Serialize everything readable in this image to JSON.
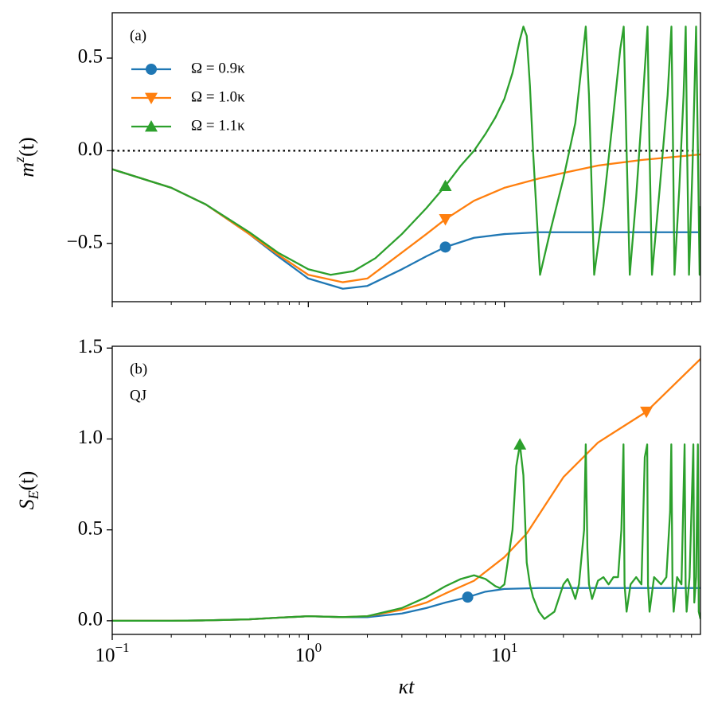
{
  "chart_data": [
    {
      "type": "line",
      "panel_label": "(a)",
      "log_x": true,
      "legend": "upper left",
      "ylabel": {
        "base": "m",
        "sup": "z",
        "rest": "(t)"
      },
      "reference_line": 0,
      "xlim": [
        0.1,
        100
      ],
      "ylim": [
        -0.815,
        0.745
      ],
      "xticks": [
        0.1,
        1,
        10
      ],
      "yticks": [
        {
          "value": -0.5,
          "label": "−0.5"
        },
        {
          "value": 0,
          "label": "0.0"
        },
        0.5
      ],
      "series": [
        {
          "name": "Ω = 0.9κ",
          "color": "#1f77b4",
          "marker": "circle",
          "markevery": 10,
          "x": [
            0.1,
            0.2,
            0.3,
            0.5,
            0.7,
            1,
            1.5,
            2,
            3,
            4,
            5,
            7,
            10,
            15,
            20,
            30,
            50,
            100
          ],
          "values": [
            -0.1,
            -0.2,
            -0.29,
            -0.45,
            -0.57,
            -0.69,
            -0.745,
            -0.73,
            -0.64,
            -0.57,
            -0.52,
            -0.47,
            -0.45,
            -0.44,
            -0.44,
            -0.44,
            -0.44,
            -0.44
          ]
        },
        {
          "name": "Ω = 1.0κ",
          "color": "#ff7f0e",
          "marker": "triangle-down",
          "markevery": 10,
          "x": [
            0.1,
            0.2,
            0.3,
            0.5,
            0.7,
            1,
            1.5,
            2,
            3,
            4,
            5,
            7,
            10,
            15,
            20,
            30,
            50,
            100
          ],
          "values": [
            -0.1,
            -0.2,
            -0.29,
            -0.45,
            -0.56,
            -0.67,
            -0.71,
            -0.69,
            -0.55,
            -0.45,
            -0.37,
            -0.27,
            -0.2,
            -0.15,
            -0.12,
            -0.08,
            -0.05,
            -0.02
          ]
        },
        {
          "name": "Ω = 1.1κ",
          "color": "#2ca02c",
          "marker": "triangle-up",
          "markevery": 11,
          "x": [
            0.1,
            0.2,
            0.3,
            0.5,
            0.7,
            1,
            1.3,
            1.7,
            2.2,
            3,
            4,
            5,
            6,
            7,
            8,
            9,
            10,
            11,
            12,
            12.5,
            13,
            13.5,
            14,
            15.2,
            17,
            20,
            23,
            25,
            26,
            27,
            28.7,
            32,
            36,
            39,
            40.6,
            42,
            43.6,
            47,
            51,
            53.7,
            55,
            56.6,
            62,
            68,
            71.1,
            72.5,
            73.7,
            78,
            82,
            84.1,
            85.5,
            87.4,
            91,
            95,
            97,
            99,
            100
          ],
          "values": [
            -0.1,
            -0.2,
            -0.29,
            -0.44,
            -0.55,
            -0.64,
            -0.67,
            -0.65,
            -0.58,
            -0.45,
            -0.31,
            -0.19,
            -0.08,
            0,
            0.09,
            0.18,
            0.28,
            0.42,
            0.6,
            0.67,
            0.62,
            0.35,
            0,
            -0.67,
            -0.45,
            -0.15,
            0.15,
            0.5,
            0.67,
            0.3,
            -0.67,
            -0.3,
            0.2,
            0.55,
            0.67,
            0,
            -0.67,
            -0.25,
            0.3,
            0.67,
            0,
            -0.67,
            -0.2,
            0.3,
            0.67,
            0,
            -0.67,
            -0.2,
            0.3,
            0.67,
            0,
            -0.67,
            -0.1,
            0.67,
            0,
            -0.67,
            -0.3
          ]
        }
      ]
    },
    {
      "type": "line",
      "panel_label": "(b)",
      "panel_sublabel": "QJ",
      "log_x": true,
      "xlabel": "κt",
      "ylabel": {
        "base": "S",
        "sub": "E",
        "rest": "(t)"
      },
      "xlim": [
        0.1,
        100
      ],
      "ylim": [
        -0.075,
        1.51
      ],
      "xticks": [
        {
          "value": 0.1,
          "label": "10",
          "exponent": "−1"
        },
        {
          "value": 1,
          "label": "10",
          "exponent": "0"
        },
        {
          "value": 10,
          "label": "10",
          "exponent": "1"
        }
      ],
      "yticks": [
        {
          "value": 0,
          "label": "0.0"
        },
        0.5,
        {
          "value": 1,
          "label": "1.0"
        },
        1.5
      ],
      "series": [
        {
          "name": "Ω = 0.9κ",
          "color": "#1f77b4",
          "marker": "circle",
          "markevery": 11,
          "x": [
            0.1,
            0.2,
            0.3,
            0.5,
            0.7,
            1,
            1.5,
            2,
            3,
            4,
            5,
            6.5,
            8,
            10,
            15,
            30,
            100
          ],
          "values": [
            0,
            0,
            0.002,
            0.008,
            0.017,
            0.025,
            0.02,
            0.02,
            0.04,
            0.07,
            0.1,
            0.13,
            0.16,
            0.175,
            0.18,
            0.18,
            0.18
          ]
        },
        {
          "name": "Ω = 1.0κ",
          "color": "#ff7f0e",
          "marker": "triangle-down",
          "markevery": 16,
          "x": [
            0.1,
            0.2,
            0.3,
            0.5,
            0.7,
            1,
            1.5,
            2,
            3,
            4,
            5,
            7,
            10,
            13,
            20,
            30,
            53,
            100
          ],
          "values": [
            0,
            0,
            0.002,
            0.008,
            0.017,
            0.025,
            0.02,
            0.025,
            0.06,
            0.1,
            0.15,
            0.22,
            0.35,
            0.48,
            0.79,
            0.98,
            1.15,
            1.44
          ]
        },
        {
          "name": "Ω = 1.1κ",
          "color": "#2ca02c",
          "marker": "triangle-up",
          "markevery": 19,
          "x": [
            0.1,
            0.2,
            0.3,
            0.5,
            0.7,
            1,
            1.5,
            2,
            3,
            4,
            5,
            6,
            7,
            8,
            9,
            9.5,
            10,
            11,
            11.5,
            12,
            12.5,
            13,
            13.5,
            14,
            15,
            16,
            18,
            20,
            21,
            22,
            23,
            24,
            25.5,
            26,
            26.5,
            27,
            28,
            30,
            32,
            34,
            36,
            38,
            39.5,
            40.5,
            41,
            42,
            44,
            47,
            50,
            52,
            53.5,
            54,
            55,
            58,
            63,
            67,
            70,
            71,
            72,
            73,
            76,
            80,
            83,
            84,
            85,
            88,
            92,
            93,
            95,
            97,
            98,
            100
          ],
          "values": [
            0,
            0,
            0.002,
            0.008,
            0.017,
            0.025,
            0.02,
            0.025,
            0.07,
            0.13,
            0.19,
            0.23,
            0.25,
            0.23,
            0.19,
            0.18,
            0.2,
            0.5,
            0.85,
            0.97,
            0.8,
            0.32,
            0.2,
            0.13,
            0.05,
            0.01,
            0.05,
            0.2,
            0.23,
            0.18,
            0.12,
            0.2,
            0.5,
            0.97,
            0.4,
            0.2,
            0.12,
            0.22,
            0.24,
            0.2,
            0.24,
            0.24,
            0.5,
            0.97,
            0.2,
            0.05,
            0.2,
            0.24,
            0.2,
            0.9,
            0.97,
            0.2,
            0.05,
            0.24,
            0.2,
            0.24,
            0.6,
            0.97,
            0.2,
            0.05,
            0.24,
            0.2,
            0.97,
            0.2,
            0.05,
            0.24,
            0.97,
            0.1,
            0.24,
            0.97,
            0.05,
            0.01
          ]
        }
      ]
    }
  ]
}
